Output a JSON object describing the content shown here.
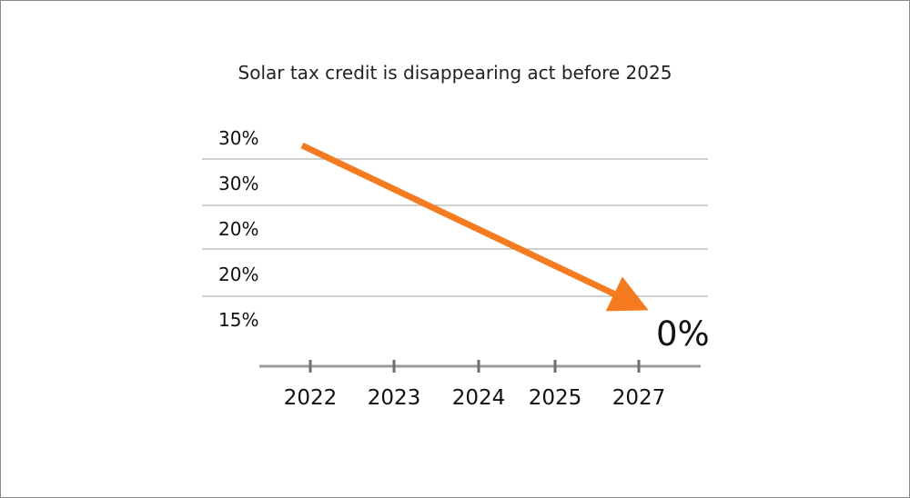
{
  "chart_data": {
    "type": "line",
    "title": "Solar tax credit is disappearing act before 2025",
    "y_tick_labels": [
      "30%",
      "30%",
      "20%",
      "20%",
      "15%"
    ],
    "categories": [
      "2022",
      "2023",
      "2024",
      "2025",
      "2027"
    ],
    "series": [
      {
        "values": [
          30,
          null,
          null,
          null,
          0
        ],
        "color": "#f47b20"
      }
    ],
    "annotations": [
      {
        "text": "0%",
        "x": "2027"
      }
    ],
    "trend": "downward arrow",
    "grid": true
  }
}
